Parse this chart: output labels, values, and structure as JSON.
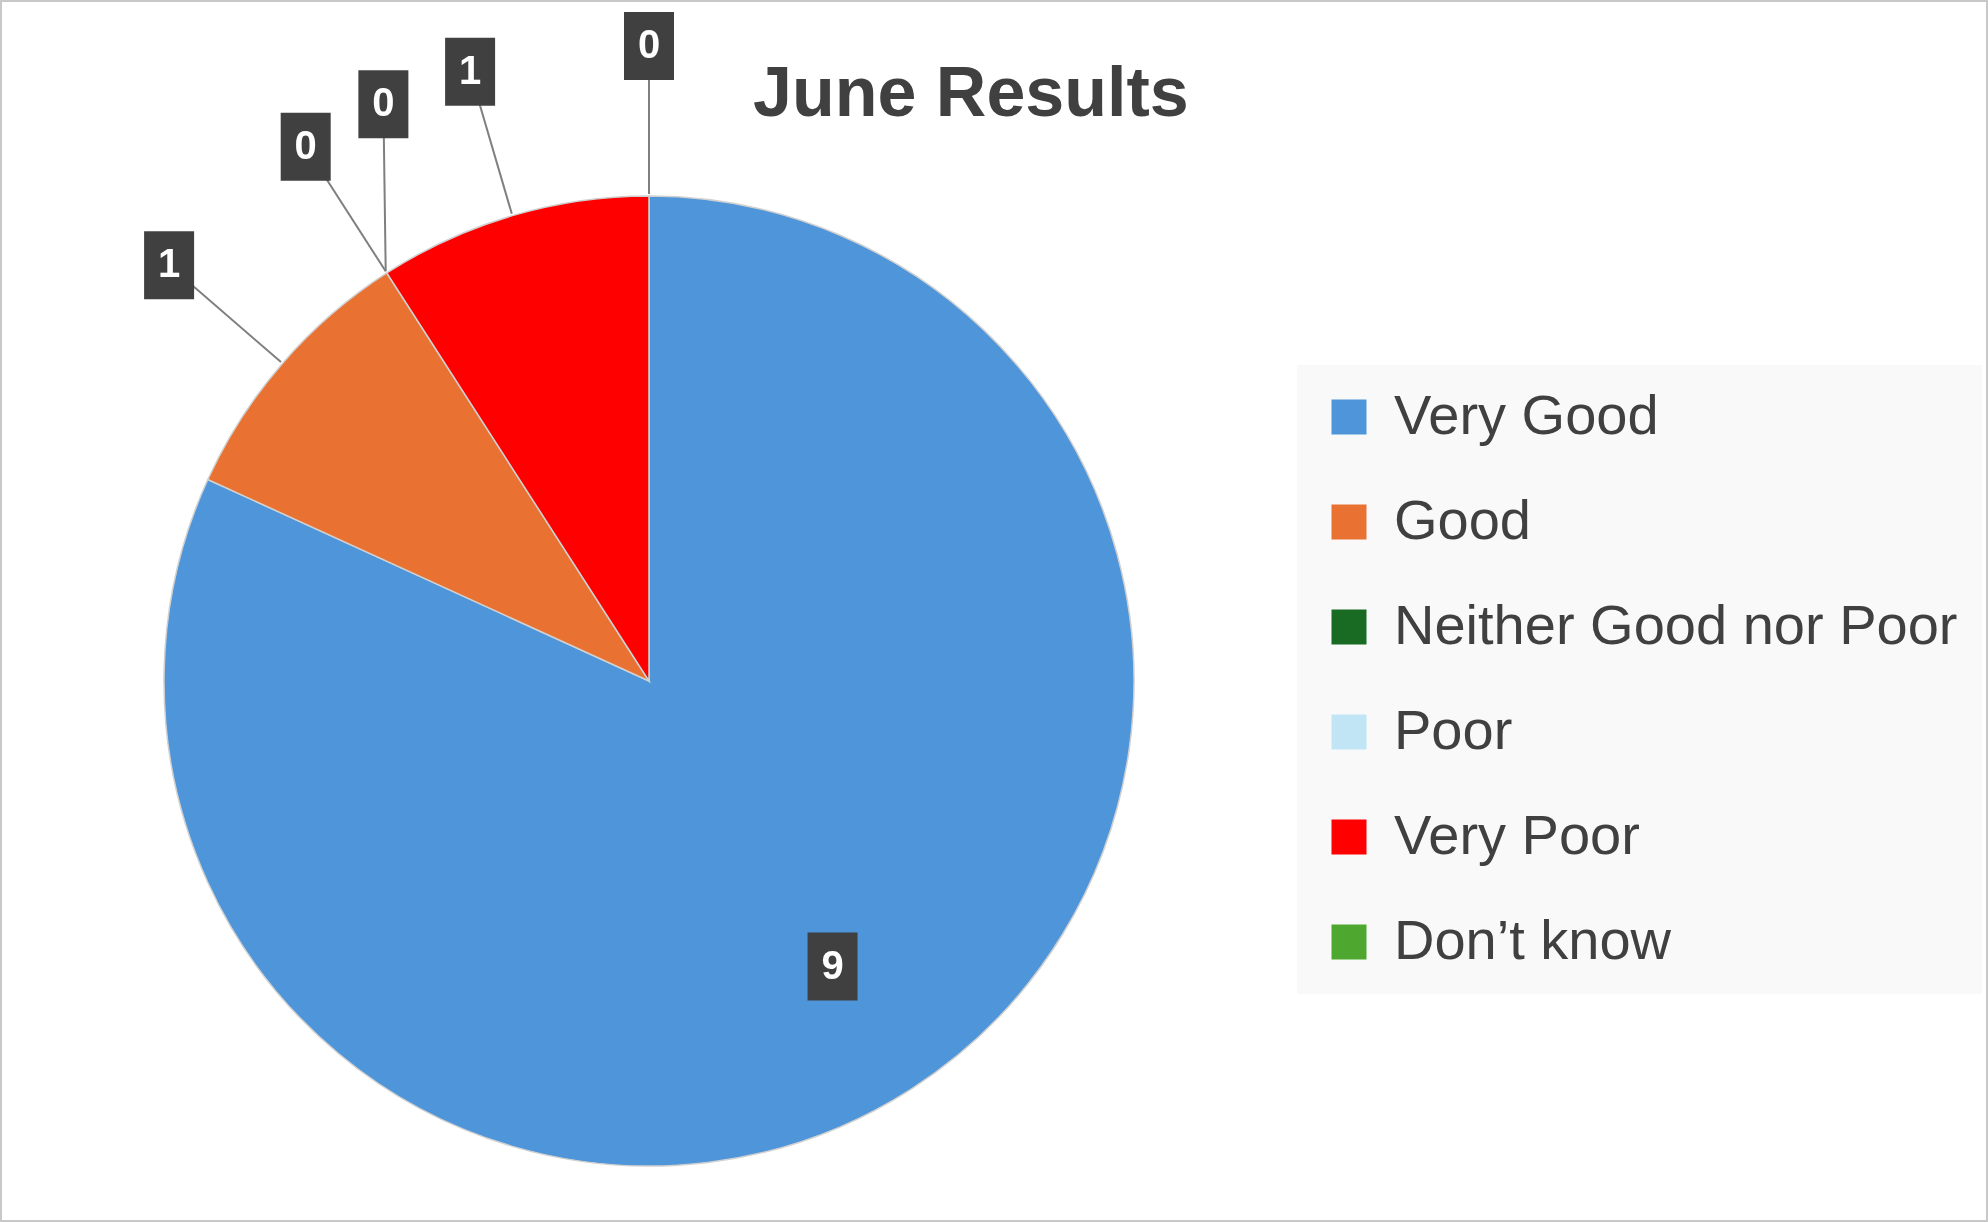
{
  "chart_data": {
    "type": "pie",
    "title": "June Results",
    "categories": [
      "Very Good",
      "Good",
      "Neither Good nor Poor",
      "Poor",
      "Very Poor",
      "Don’t know"
    ],
    "values": [
      9,
      1,
      0,
      0,
      1,
      0
    ],
    "value_labels": [
      "9",
      "1",
      "0",
      "0",
      "1",
      "0"
    ],
    "colors": [
      "#4f95d9",
      "#e97132",
      "#196b24",
      "#c1e5f5",
      "#ff0000",
      "#4ea72e"
    ],
    "legend": "right"
  }
}
